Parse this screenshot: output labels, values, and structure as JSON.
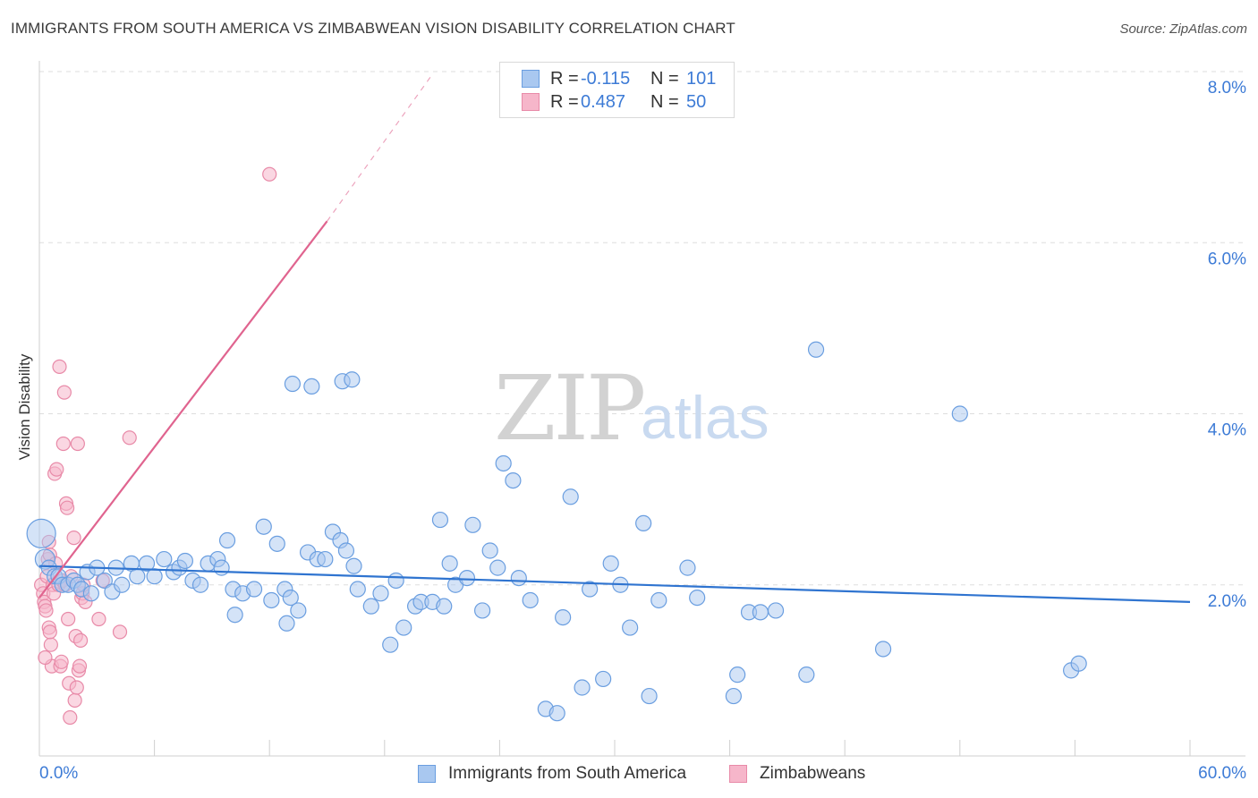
{
  "title": "IMMIGRANTS FROM SOUTH AMERICA VS ZIMBABWEAN VISION DISABILITY CORRELATION CHART",
  "source": "Source: ZipAtlas.com",
  "watermark": {
    "zip": "ZIP",
    "atlas": "atlas"
  },
  "legend": {
    "rows": [
      {
        "r_label": "R =",
        "r_value": "-0.115",
        "n_label": "N =",
        "n_value": "101"
      },
      {
        "r_label": "R =",
        "r_value": "0.487",
        "n_label": "N =",
        "n_value": "50"
      }
    ]
  },
  "colors": {
    "blue_fill": "#a9c8f0",
    "blue_stroke": "#6a9ee0",
    "blue_line": "#2f74d0",
    "pink_fill": "#f6b6ca",
    "pink_stroke": "#e88aa8",
    "pink_line": "#e0648f",
    "axis_text": "#3d7bd6",
    "grid": "#dddddd"
  },
  "chart_data": {
    "type": "scatter",
    "title": "IMMIGRANTS FROM SOUTH AMERICA VS ZIMBABWEAN VISION DISABILITY CORRELATION CHART",
    "xlabel": "",
    "ylabel": "Vision Disability",
    "xlim": [
      0,
      60
    ],
    "ylim": [
      0,
      8.0
    ],
    "x_tick_labels": [
      "0.0%",
      "60.0%"
    ],
    "y_tick_values": [
      2,
      4,
      6,
      8
    ],
    "y_tick_labels": [
      "2.0%",
      "4.0%",
      "6.0%",
      "8.0%"
    ],
    "series": [
      {
        "name": "Immigrants from South America",
        "color": "blue",
        "trend": {
          "x0": 0,
          "y0": 2.22,
          "x1": 60,
          "y1": 1.8
        },
        "points": [
          [
            0.1,
            2.6
          ],
          [
            0.3,
            2.3
          ],
          [
            0.5,
            2.2
          ],
          [
            0.8,
            2.1
          ],
          [
            1.0,
            2.1
          ],
          [
            1.2,
            2.0
          ],
          [
            1.5,
            2.0
          ],
          [
            1.8,
            2.05
          ],
          [
            2.0,
            2.0
          ],
          [
            2.2,
            1.95
          ],
          [
            2.5,
            2.15
          ],
          [
            2.7,
            1.9
          ],
          [
            3.0,
            2.2
          ],
          [
            3.4,
            2.05
          ],
          [
            3.8,
            1.92
          ],
          [
            4.0,
            2.2
          ],
          [
            4.3,
            2.0
          ],
          [
            4.8,
            2.25
          ],
          [
            5.1,
            2.1
          ],
          [
            5.6,
            2.25
          ],
          [
            6.0,
            2.1
          ],
          [
            6.5,
            2.3
          ],
          [
            7.0,
            2.15
          ],
          [
            7.3,
            2.2
          ],
          [
            7.6,
            2.28
          ],
          [
            8.0,
            2.05
          ],
          [
            8.4,
            2.0
          ],
          [
            8.8,
            2.25
          ],
          [
            9.3,
            2.3
          ],
          [
            9.5,
            2.2
          ],
          [
            9.8,
            2.52
          ],
          [
            10.1,
            1.95
          ],
          [
            10.6,
            1.9
          ],
          [
            11.2,
            1.95
          ],
          [
            11.7,
            2.68
          ],
          [
            12.4,
            2.48
          ],
          [
            12.1,
            1.82
          ],
          [
            12.8,
            1.95
          ],
          [
            13.1,
            1.85
          ],
          [
            13.5,
            1.7
          ],
          [
            14.0,
            2.38
          ],
          [
            14.5,
            2.3
          ],
          [
            14.9,
            2.3
          ],
          [
            15.3,
            2.62
          ],
          [
            15.7,
            2.52
          ],
          [
            16.0,
            2.4
          ],
          [
            16.4,
            2.22
          ],
          [
            16.6,
            1.95
          ],
          [
            17.3,
            1.75
          ],
          [
            17.8,
            1.9
          ],
          [
            18.3,
            1.3
          ],
          [
            18.6,
            2.05
          ],
          [
            19.0,
            1.5
          ],
          [
            19.6,
            1.75
          ],
          [
            19.9,
            1.8
          ],
          [
            20.5,
            1.8
          ],
          [
            20.9,
            2.76
          ],
          [
            21.4,
            2.25
          ],
          [
            21.7,
            2.0
          ],
          [
            22.3,
            2.08
          ],
          [
            22.6,
            2.7
          ],
          [
            23.1,
            1.7
          ],
          [
            23.5,
            2.4
          ],
          [
            23.9,
            2.2
          ],
          [
            24.2,
            3.42
          ],
          [
            24.7,
            3.22
          ],
          [
            25.0,
            2.08
          ],
          [
            25.6,
            1.82
          ],
          [
            26.4,
            0.55
          ],
          [
            27.0,
            0.5
          ],
          [
            27.3,
            1.62
          ],
          [
            27.7,
            3.03
          ],
          [
            28.3,
            0.8
          ],
          [
            28.7,
            1.95
          ],
          [
            29.4,
            0.9
          ],
          [
            29.8,
            2.25
          ],
          [
            30.3,
            2.0
          ],
          [
            30.8,
            1.5
          ],
          [
            31.5,
            2.72
          ],
          [
            31.8,
            0.7
          ],
          [
            32.3,
            1.82
          ],
          [
            33.8,
            2.2
          ],
          [
            34.3,
            1.85
          ],
          [
            36.2,
            0.7
          ],
          [
            36.4,
            0.95
          ],
          [
            37.0,
            1.68
          ],
          [
            37.6,
            1.68
          ],
          [
            38.4,
            1.7
          ],
          [
            40.5,
            4.75
          ],
          [
            40.0,
            0.95
          ],
          [
            44.0,
            1.25
          ],
          [
            48.0,
            4.0
          ],
          [
            53.8,
            1.0
          ],
          [
            54.2,
            1.08
          ],
          [
            13.2,
            4.35
          ],
          [
            14.2,
            4.32
          ],
          [
            15.8,
            4.38
          ],
          [
            16.3,
            4.4
          ],
          [
            21.1,
            1.75
          ],
          [
            10.2,
            1.65
          ],
          [
            12.9,
            1.55
          ]
        ]
      },
      {
        "name": "Zimbabweans",
        "color": "pink",
        "trend": {
          "x0": 0,
          "y0": 1.85,
          "x1": 15.0,
          "y1": 6.25,
          "dash_x1": 20.5,
          "dash_y1": 7.97
        },
        "points": [
          [
            0.1,
            2.0
          ],
          [
            0.2,
            1.9
          ],
          [
            0.25,
            1.8
          ],
          [
            0.3,
            1.75
          ],
          [
            0.35,
            1.7
          ],
          [
            0.4,
            2.1
          ],
          [
            0.45,
            2.3
          ],
          [
            0.5,
            2.5
          ],
          [
            0.5,
            1.5
          ],
          [
            0.55,
            2.35
          ],
          [
            0.6,
            1.3
          ],
          [
            0.65,
            1.05
          ],
          [
            0.7,
            2.0
          ],
          [
            0.75,
            1.9
          ],
          [
            0.8,
            3.3
          ],
          [
            0.85,
            2.25
          ],
          [
            0.9,
            3.35
          ],
          [
            1.0,
            2.0
          ],
          [
            1.05,
            4.55
          ],
          [
            1.1,
            1.05
          ],
          [
            1.15,
            1.1
          ],
          [
            1.2,
            2.05
          ],
          [
            1.25,
            3.65
          ],
          [
            1.3,
            4.25
          ],
          [
            1.35,
            2.0
          ],
          [
            1.4,
            2.95
          ],
          [
            1.45,
            2.9
          ],
          [
            1.5,
            1.6
          ],
          [
            1.55,
            0.85
          ],
          [
            1.6,
            0.45
          ],
          [
            1.65,
            2.1
          ],
          [
            1.8,
            2.55
          ],
          [
            1.85,
            0.65
          ],
          [
            1.9,
            1.4
          ],
          [
            1.95,
            0.8
          ],
          [
            2.0,
            3.65
          ],
          [
            2.05,
            1.0
          ],
          [
            2.1,
            1.05
          ],
          [
            2.15,
            1.35
          ],
          [
            2.2,
            1.85
          ],
          [
            2.25,
            1.9
          ],
          [
            2.3,
            2.0
          ],
          [
            2.4,
            1.8
          ],
          [
            3.1,
            1.6
          ],
          [
            3.3,
            2.05
          ],
          [
            4.2,
            1.45
          ],
          [
            4.7,
            3.72
          ],
          [
            12.0,
            6.8
          ],
          [
            0.55,
            1.45
          ],
          [
            0.3,
            1.15
          ]
        ]
      }
    ]
  },
  "bottom_legend": {
    "items": [
      {
        "label": "Immigrants from South America"
      },
      {
        "label": "Zimbabweans"
      }
    ]
  }
}
